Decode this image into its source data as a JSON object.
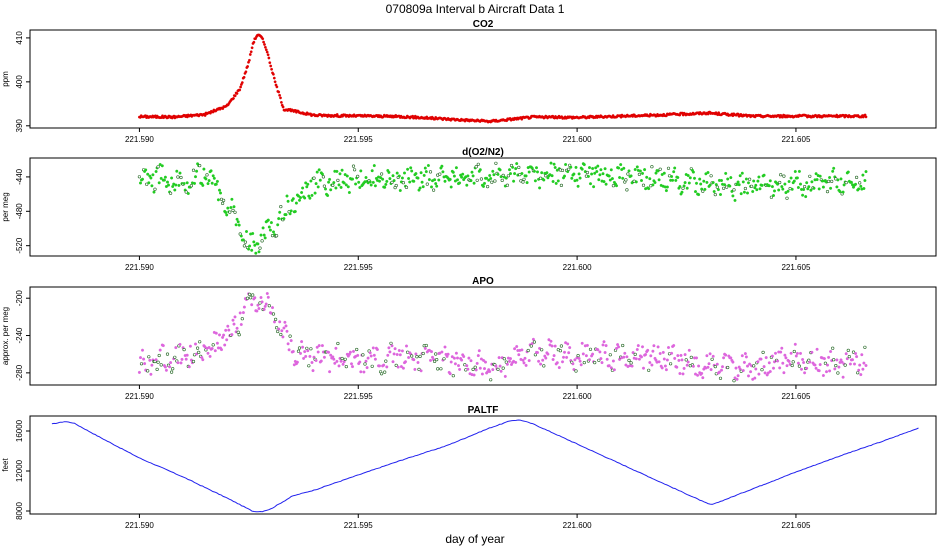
{
  "figure": {
    "title": "070809a   Interval b Aircraft Data 1",
    "xlabel": "day of year"
  },
  "chart_data": [
    {
      "type": "scatter",
      "title": "CO2",
      "ylabel": "ppm",
      "xlim": [
        221.5875,
        221.6082
      ],
      "ylim": [
        389.5,
        411.8
      ],
      "yticks": [
        390,
        400,
        410
      ],
      "xticks": [
        221.59,
        221.595,
        221.6,
        221.605
      ],
      "xtick_labels": [
        "221.590",
        "221.595",
        "221.600",
        "221.605"
      ],
      "color": "#e00000",
      "x": [
        221.59,
        221.5908,
        221.5915,
        221.592,
        221.5923,
        221.5925,
        221.5926,
        221.5927,
        221.5928,
        221.5929,
        221.5931,
        221.5933,
        221.594,
        221.596,
        221.598,
        221.599,
        221.6,
        221.602,
        221.603,
        221.604,
        221.6066
      ],
      "y": [
        392.1,
        392.0,
        392.6,
        394.5,
        398.5,
        404.5,
        409.0,
        410.8,
        410.0,
        407.5,
        400.0,
        393.8,
        392.4,
        392.1,
        391.0,
        392.0,
        391.9,
        392.5,
        392.9,
        392.2,
        392.2
      ]
    },
    {
      "type": "scatter",
      "title": "d(O2/N2)",
      "ylabel": "per meg",
      "xlim": [
        221.5875,
        221.6082
      ],
      "ylim": [
        -532,
        -418
      ],
      "yticks": [
        -520,
        -480,
        -440
      ],
      "xticks": [
        221.59,
        221.595,
        221.6,
        221.605
      ],
      "xtick_labels": [
        "221.590",
        "221.595",
        "221.600",
        "221.605"
      ],
      "color": "#22cc22",
      "x": [
        221.59,
        221.5905,
        221.591,
        221.5915,
        221.5918,
        221.5922,
        221.5925,
        221.5927,
        221.593,
        221.5935,
        221.594,
        221.595,
        221.596,
        221.597,
        221.598,
        221.599,
        221.6,
        221.601,
        221.602,
        221.603,
        221.604,
        221.605,
        221.606,
        221.6066
      ],
      "y": [
        -445,
        -440,
        -447,
        -438,
        -455,
        -490,
        -522,
        -515,
        -500,
        -470,
        -448,
        -442,
        -445,
        -440,
        -440,
        -437,
        -435,
        -440,
        -440,
        -450,
        -452,
        -448,
        -445,
        -443
      ]
    },
    {
      "type": "scatter",
      "title": "APO",
      "ylabel": "approx. per meg",
      "xlim": [
        221.5875,
        221.6082
      ],
      "ylim": [
        -293,
        -188
      ],
      "yticks": [
        -280,
        -240,
        -200
      ],
      "xticks": [
        221.59,
        221.595,
        221.6,
        221.605
      ],
      "xtick_labels": [
        "221.590",
        "221.595",
        "221.600",
        "221.605"
      ],
      "color": "#dd66dd",
      "x": [
        221.59,
        221.5905,
        221.591,
        221.5915,
        221.5918,
        221.5922,
        221.5925,
        221.5927,
        221.593,
        221.5935,
        221.594,
        221.595,
        221.596,
        221.597,
        221.598,
        221.599,
        221.6,
        221.601,
        221.602,
        221.603,
        221.604,
        221.605,
        221.606,
        221.6066
      ],
      "y": [
        -272,
        -266,
        -262,
        -255,
        -248,
        -230,
        -205,
        -200,
        -215,
        -255,
        -262,
        -268,
        -262,
        -268,
        -274,
        -258,
        -262,
        -263,
        -263,
        -272,
        -275,
        -265,
        -270,
        -267
      ]
    },
    {
      "type": "line",
      "title": "PALTF",
      "ylabel": "feet",
      "xlim": [
        221.5875,
        221.6082
      ],
      "ylim": [
        7700,
        17500
      ],
      "yticks": [
        8000,
        12000,
        16000
      ],
      "xticks": [
        221.59,
        221.595,
        221.6,
        221.605
      ],
      "xtick_labels": [
        "221.590",
        "221.595",
        "221.600",
        "221.605"
      ],
      "color": "#2222ee",
      "x": [
        221.588,
        221.5883,
        221.5885,
        221.589,
        221.59,
        221.591,
        221.592,
        221.5926,
        221.5928,
        221.593,
        221.5935,
        221.594,
        221.595,
        221.596,
        221.597,
        221.598,
        221.5985,
        221.5987,
        221.599,
        221.6,
        221.601,
        221.602,
        221.603,
        221.6031,
        221.6033,
        221.604,
        221.605,
        221.606,
        221.607,
        221.6078
      ],
      "y": [
        16700,
        16950,
        16800,
        15600,
        13300,
        11400,
        9300,
        7950,
        7950,
        8200,
        9500,
        10100,
        11600,
        13100,
        14500,
        16300,
        17050,
        17100,
        16700,
        14700,
        12700,
        10700,
        8700,
        8650,
        9000,
        10200,
        11900,
        13500,
        15000,
        16300
      ]
    }
  ]
}
